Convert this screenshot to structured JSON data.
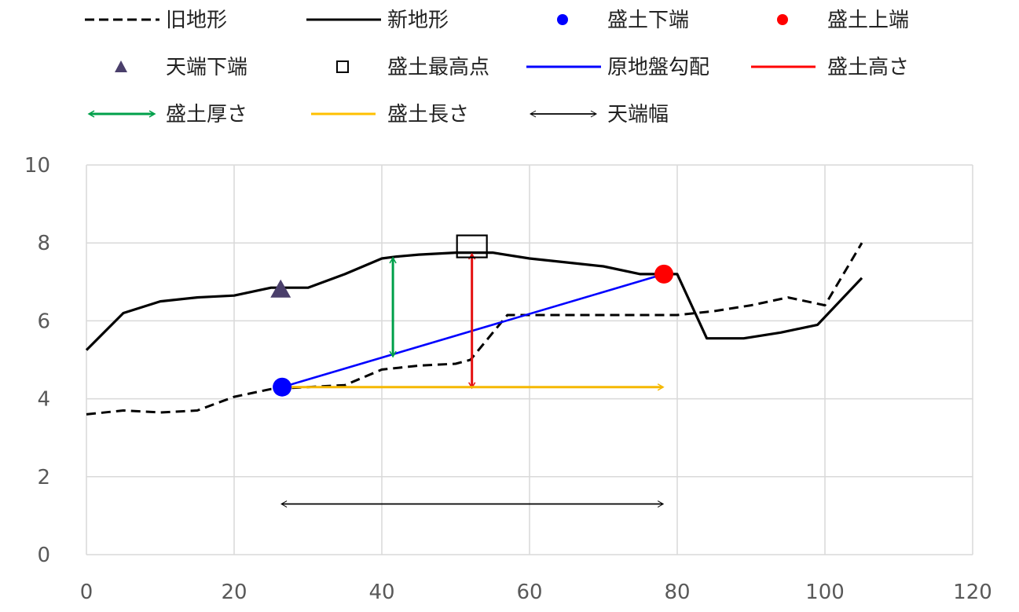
{
  "chart_data": {
    "type": "line",
    "xlim": [
      0,
      120
    ],
    "ylim": [
      0,
      10
    ],
    "x_ticks": [
      "0",
      "20",
      "40",
      "60",
      "80",
      "100",
      "120"
    ],
    "y_ticks": [
      "0",
      "2",
      "4",
      "6",
      "8",
      "10"
    ],
    "grid": true,
    "legend_position": "top",
    "legend": [
      {
        "key": "old",
        "label": "旧地形",
        "marker": "dash-line",
        "color": "#000000"
      },
      {
        "key": "new",
        "label": "新地形",
        "marker": "solid-line",
        "color": "#000000"
      },
      {
        "key": "toe",
        "label": "盛土下端",
        "marker": "circle",
        "color": "#0000ff"
      },
      {
        "key": "top_edge",
        "label": "盛土上端",
        "marker": "circle",
        "color": "#ff0000"
      },
      {
        "key": "crest_toe",
        "label": "天端下端",
        "marker": "triangle",
        "color": "#4a3f6b"
      },
      {
        "key": "peak",
        "label": "盛土最高点",
        "marker": "square",
        "color": "#000000"
      },
      {
        "key": "ground_slope",
        "label": "原地盤勾配",
        "marker": "solid-line",
        "color": "#0000ff"
      },
      {
        "key": "height",
        "label": "盛土高さ",
        "marker": "double-arrow",
        "color": "#ff0000"
      },
      {
        "key": "thickness",
        "label": "盛土厚さ",
        "marker": "double-arrow",
        "color": "#00a04a"
      },
      {
        "key": "length",
        "label": "盛土長さ",
        "marker": "double-arrow",
        "color": "#ffc000"
      },
      {
        "key": "crest_width",
        "label": "天端幅",
        "marker": "double-arrow",
        "color": "#000000"
      }
    ],
    "series": [
      {
        "name": "旧地形",
        "style": "dashed",
        "color": "#000000",
        "x": [
          0,
          5,
          10,
          15,
          20,
          25,
          30,
          35,
          40,
          45,
          50,
          52,
          57,
          60,
          65,
          70,
          75,
          80,
          85,
          90,
          95,
          100,
          105
        ],
        "y": [
          3.6,
          3.7,
          3.65,
          3.7,
          4.05,
          4.25,
          4.3,
          4.35,
          4.75,
          4.85,
          4.9,
          5.0,
          6.15,
          6.15,
          6.15,
          6.15,
          6.15,
          6.15,
          6.25,
          6.4,
          6.6,
          6.4,
          8.0
        ]
      },
      {
        "name": "新地形",
        "style": "solid",
        "color": "#000000",
        "x": [
          0,
          5,
          10,
          15,
          20,
          25,
          30,
          35,
          40,
          42,
          45,
          50,
          52,
          55,
          60,
          65,
          70,
          75,
          78,
          80,
          84,
          89,
          94,
          99,
          105
        ],
        "y": [
          5.25,
          6.2,
          6.5,
          6.6,
          6.65,
          6.85,
          6.85,
          7.2,
          7.6,
          7.65,
          7.7,
          7.75,
          7.75,
          7.75,
          7.6,
          7.5,
          7.4,
          7.2,
          7.2,
          7.2,
          5.55,
          5.55,
          5.7,
          5.9,
          7.1
        ]
      },
      {
        "name": "原地盤勾配",
        "style": "solid",
        "color": "#0000ff",
        "x": [
          26.5,
          78.2
        ],
        "y": [
          4.3,
          7.2
        ]
      }
    ],
    "points": [
      {
        "name": "盛土下端",
        "shape": "circle",
        "color": "#0000ff",
        "x": 26.5,
        "y": 4.3
      },
      {
        "name": "盛土上端",
        "shape": "circle",
        "color": "#ff0000",
        "x": 78.2,
        "y": 7.2
      },
      {
        "name": "天端下端",
        "shape": "triangle",
        "color": "#4a3f6b",
        "x": 26.3,
        "y": 6.8
      },
      {
        "name": "盛土最高点",
        "shape": "square",
        "color": "#000000",
        "x": 52.2,
        "y": 7.75
      }
    ],
    "arrows": [
      {
        "name": "盛土高さ",
        "color": "#e41010",
        "x1": 52.2,
        "y1": 4.3,
        "x2": 52.2,
        "y2": 7.7
      },
      {
        "name": "盛土厚さ",
        "color": "#00a04a",
        "x1": 41.5,
        "y1": 5.1,
        "x2": 41.5,
        "y2": 7.6
      },
      {
        "name": "盛土長さ",
        "color": "#f5b800",
        "x1": 26.5,
        "y1": 4.3,
        "x2": 78.0,
        "y2": 4.3
      },
      {
        "name": "天端幅",
        "color": "#000000",
        "x1": 26.5,
        "y1": 1.3,
        "x2": 78.0,
        "y2": 1.3
      }
    ]
  }
}
